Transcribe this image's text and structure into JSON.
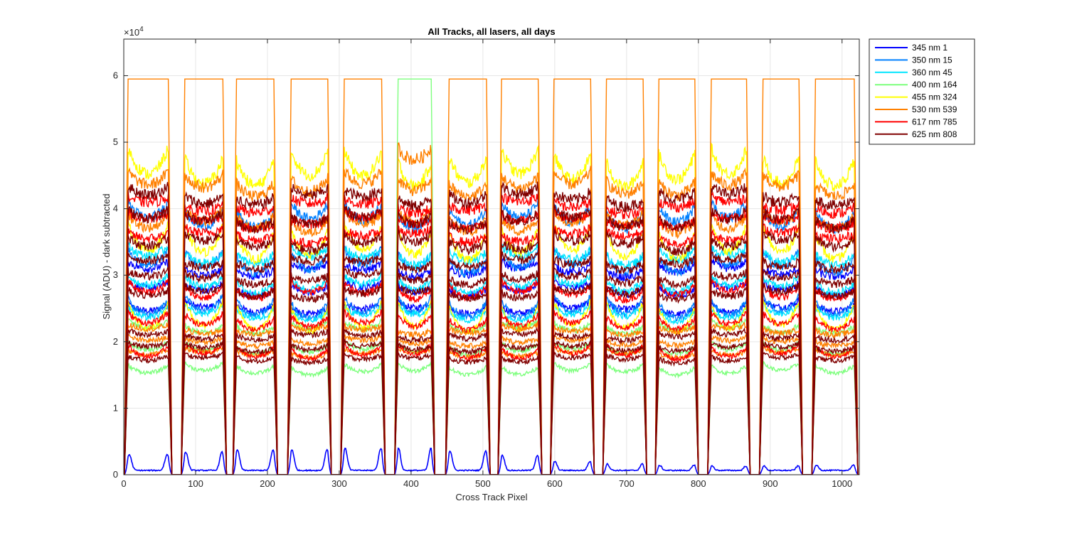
{
  "chart_data": {
    "type": "line",
    "title": "All Tracks, all lasers, all days",
    "xlabel": "Cross Track Pixel",
    "ylabel": "Signal (ADU) - dark subtracted",
    "y_exponent_label": "×10",
    "y_exponent_power": "4",
    "xlim": [
      0,
      1024
    ],
    "ylim": [
      0,
      65500
    ],
    "x_ticks": [
      0,
      100,
      200,
      300,
      400,
      500,
      600,
      700,
      800,
      900,
      1000
    ],
    "x_tick_labels": [
      "0",
      "100",
      "200",
      "300",
      "400",
      "500",
      "600",
      "700",
      "800",
      "900",
      "1000"
    ],
    "y_ticks": [
      0,
      10000,
      20000,
      30000,
      40000,
      50000,
      60000
    ],
    "y_tick_labels": [
      "0",
      "1",
      "2",
      "3",
      "4",
      "5",
      "6"
    ],
    "grid": true,
    "legend_position": "outside-top-right",
    "saturation_level": 59500,
    "track_windows": [
      [
        1,
        67
      ],
      [
        80,
        143
      ],
      [
        152,
        214
      ],
      [
        228,
        289
      ],
      [
        302,
        364
      ],
      [
        377,
        433
      ],
      [
        448,
        510
      ],
      [
        521,
        582
      ],
      [
        594,
        655
      ],
      [
        667,
        728
      ],
      [
        740,
        800
      ],
      [
        813,
        872
      ],
      [
        885,
        945
      ],
      [
        958,
        1022
      ]
    ],
    "series": [
      {
        "name": "345 nm 1",
        "color": "#0000ff",
        "level_ranges": [
          [
            27000,
            37000
          ]
        ],
        "saturated_tracks": [],
        "low_peaks": [
          2500,
          2900,
          3200,
          3300,
          3500,
          3500,
          3100,
          2400,
          1400,
          1000,
          800,
          700,
          700,
          800
        ]
      },
      {
        "name": "350 nm 15",
        "color": "#0080ff",
        "level_ranges": [
          [
            24000,
            48000
          ]
        ],
        "saturated_tracks": []
      },
      {
        "name": "360 nm 45",
        "color": "#00e5ff",
        "level_ranges": [
          [
            25000,
            40000
          ]
        ],
        "saturated_tracks": []
      },
      {
        "name": "400 nm 164",
        "color": "#7dff7d",
        "level_ranges": [
          [
            16000,
            27000
          ]
        ],
        "saturated_tracks": [
          5
        ]
      },
      {
        "name": "455 nm 324",
        "color": "#ffff00",
        "level_ranges": [
          [
            19000,
            58000
          ]
        ],
        "saturated_tracks": []
      },
      {
        "name": "530 nm 539",
        "color": "#ff8000",
        "level_ranges": [
          [
            20000,
            26000
          ],
          [
            40000,
            59500
          ]
        ],
        "saturated_tracks": [
          0,
          1,
          2,
          3,
          4,
          6,
          7,
          8,
          9,
          10,
          11,
          12,
          13
        ]
      },
      {
        "name": "617 nm 785",
        "color": "#ff0000",
        "level_ranges": [
          [
            18000,
            34000
          ],
          [
            40000,
            48000
          ]
        ],
        "saturated_tracks": []
      },
      {
        "name": "625 nm 808",
        "color": "#800000",
        "level_ranges": [
          [
            19000,
            25000
          ],
          [
            30000,
            38000
          ],
          [
            38000,
            50000
          ]
        ],
        "saturated_tracks": []
      }
    ]
  }
}
